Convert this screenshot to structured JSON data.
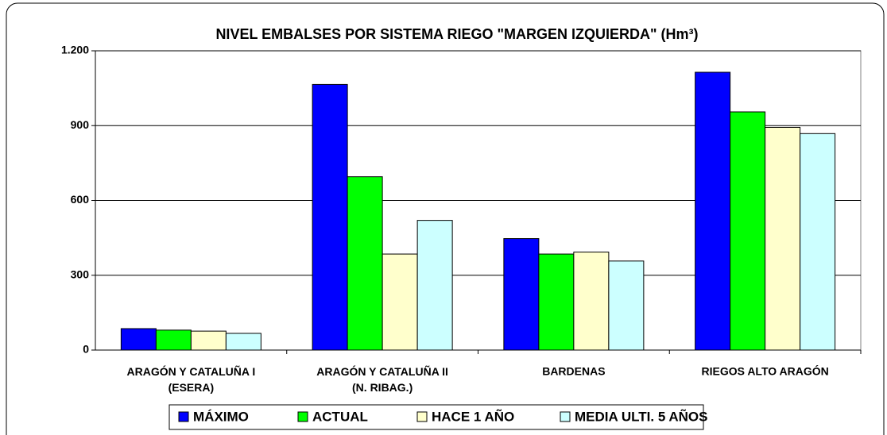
{
  "chart_data": {
    "type": "bar",
    "title": "NIVEL EMBALSES POR SISTEMA  RIEGO \"MARGEN IZQUIERDA\" (Hm³)",
    "categories": [
      "ARAGÓN Y CATALUÑA I\n(ESERA)",
      "ARAGÓN Y CATALUÑA II\n(N. RIBAG.)",
      "BARDENAS",
      "RIEGOS ALTO ARAGÓN"
    ],
    "series": [
      {
        "name": "MÁXIMO",
        "color": "#0000ff",
        "values": [
          86,
          1065,
          447,
          1114
        ]
      },
      {
        "name": "ACTUAL",
        "color": "#00ff00",
        "values": [
          80,
          695,
          385,
          955
        ]
      },
      {
        "name": "HACE 1 AÑO",
        "color": "#ffffcc",
        "values": [
          76,
          385,
          393,
          893
        ]
      },
      {
        "name": "MEDIA  ULTI. 5 AÑOS",
        "color": "#ccffff",
        "values": [
          67,
          520,
          357,
          868
        ]
      }
    ],
    "ylim": [
      0,
      1200
    ],
    "yticks": [
      0,
      300,
      600,
      900,
      {
        "value": 1200,
        "label": "1.200"
      }
    ],
    "grid": true,
    "legend": "bottom"
  }
}
